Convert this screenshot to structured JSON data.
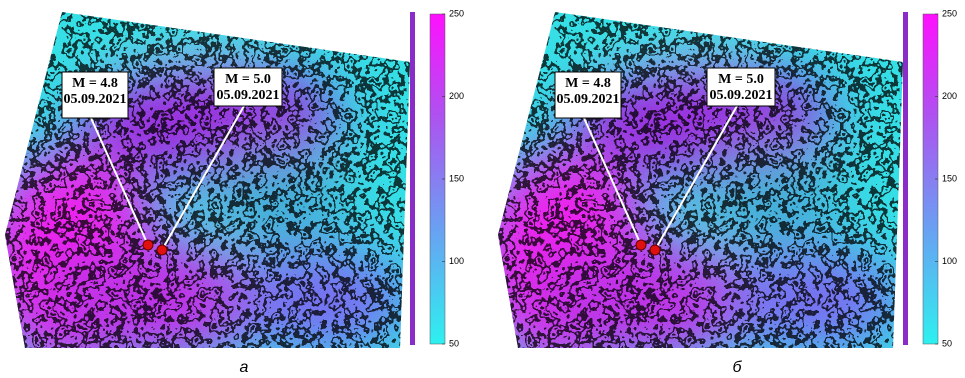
{
  "panels": [
    {
      "label": "а",
      "annotations": [
        {
          "magnitude": "M = 4.8",
          "date": "05.09.2021"
        },
        {
          "magnitude": "M = 5.0",
          "date": "05.09.2021"
        }
      ],
      "colorbar": {
        "lim": [
          50,
          250
        ],
        "ticks": [
          50,
          100,
          150,
          200,
          250
        ]
      }
    },
    {
      "label": "б",
      "annotations": [
        {
          "magnitude": "M = 4.8",
          "date": "05.09.2021"
        },
        {
          "magnitude": "M = 5.0",
          "date": "05.09.2021"
        }
      ],
      "colorbar": {
        "lim": [
          50,
          250
        ],
        "ticks": [
          50,
          100,
          150,
          200,
          250
        ]
      }
    }
  ]
}
